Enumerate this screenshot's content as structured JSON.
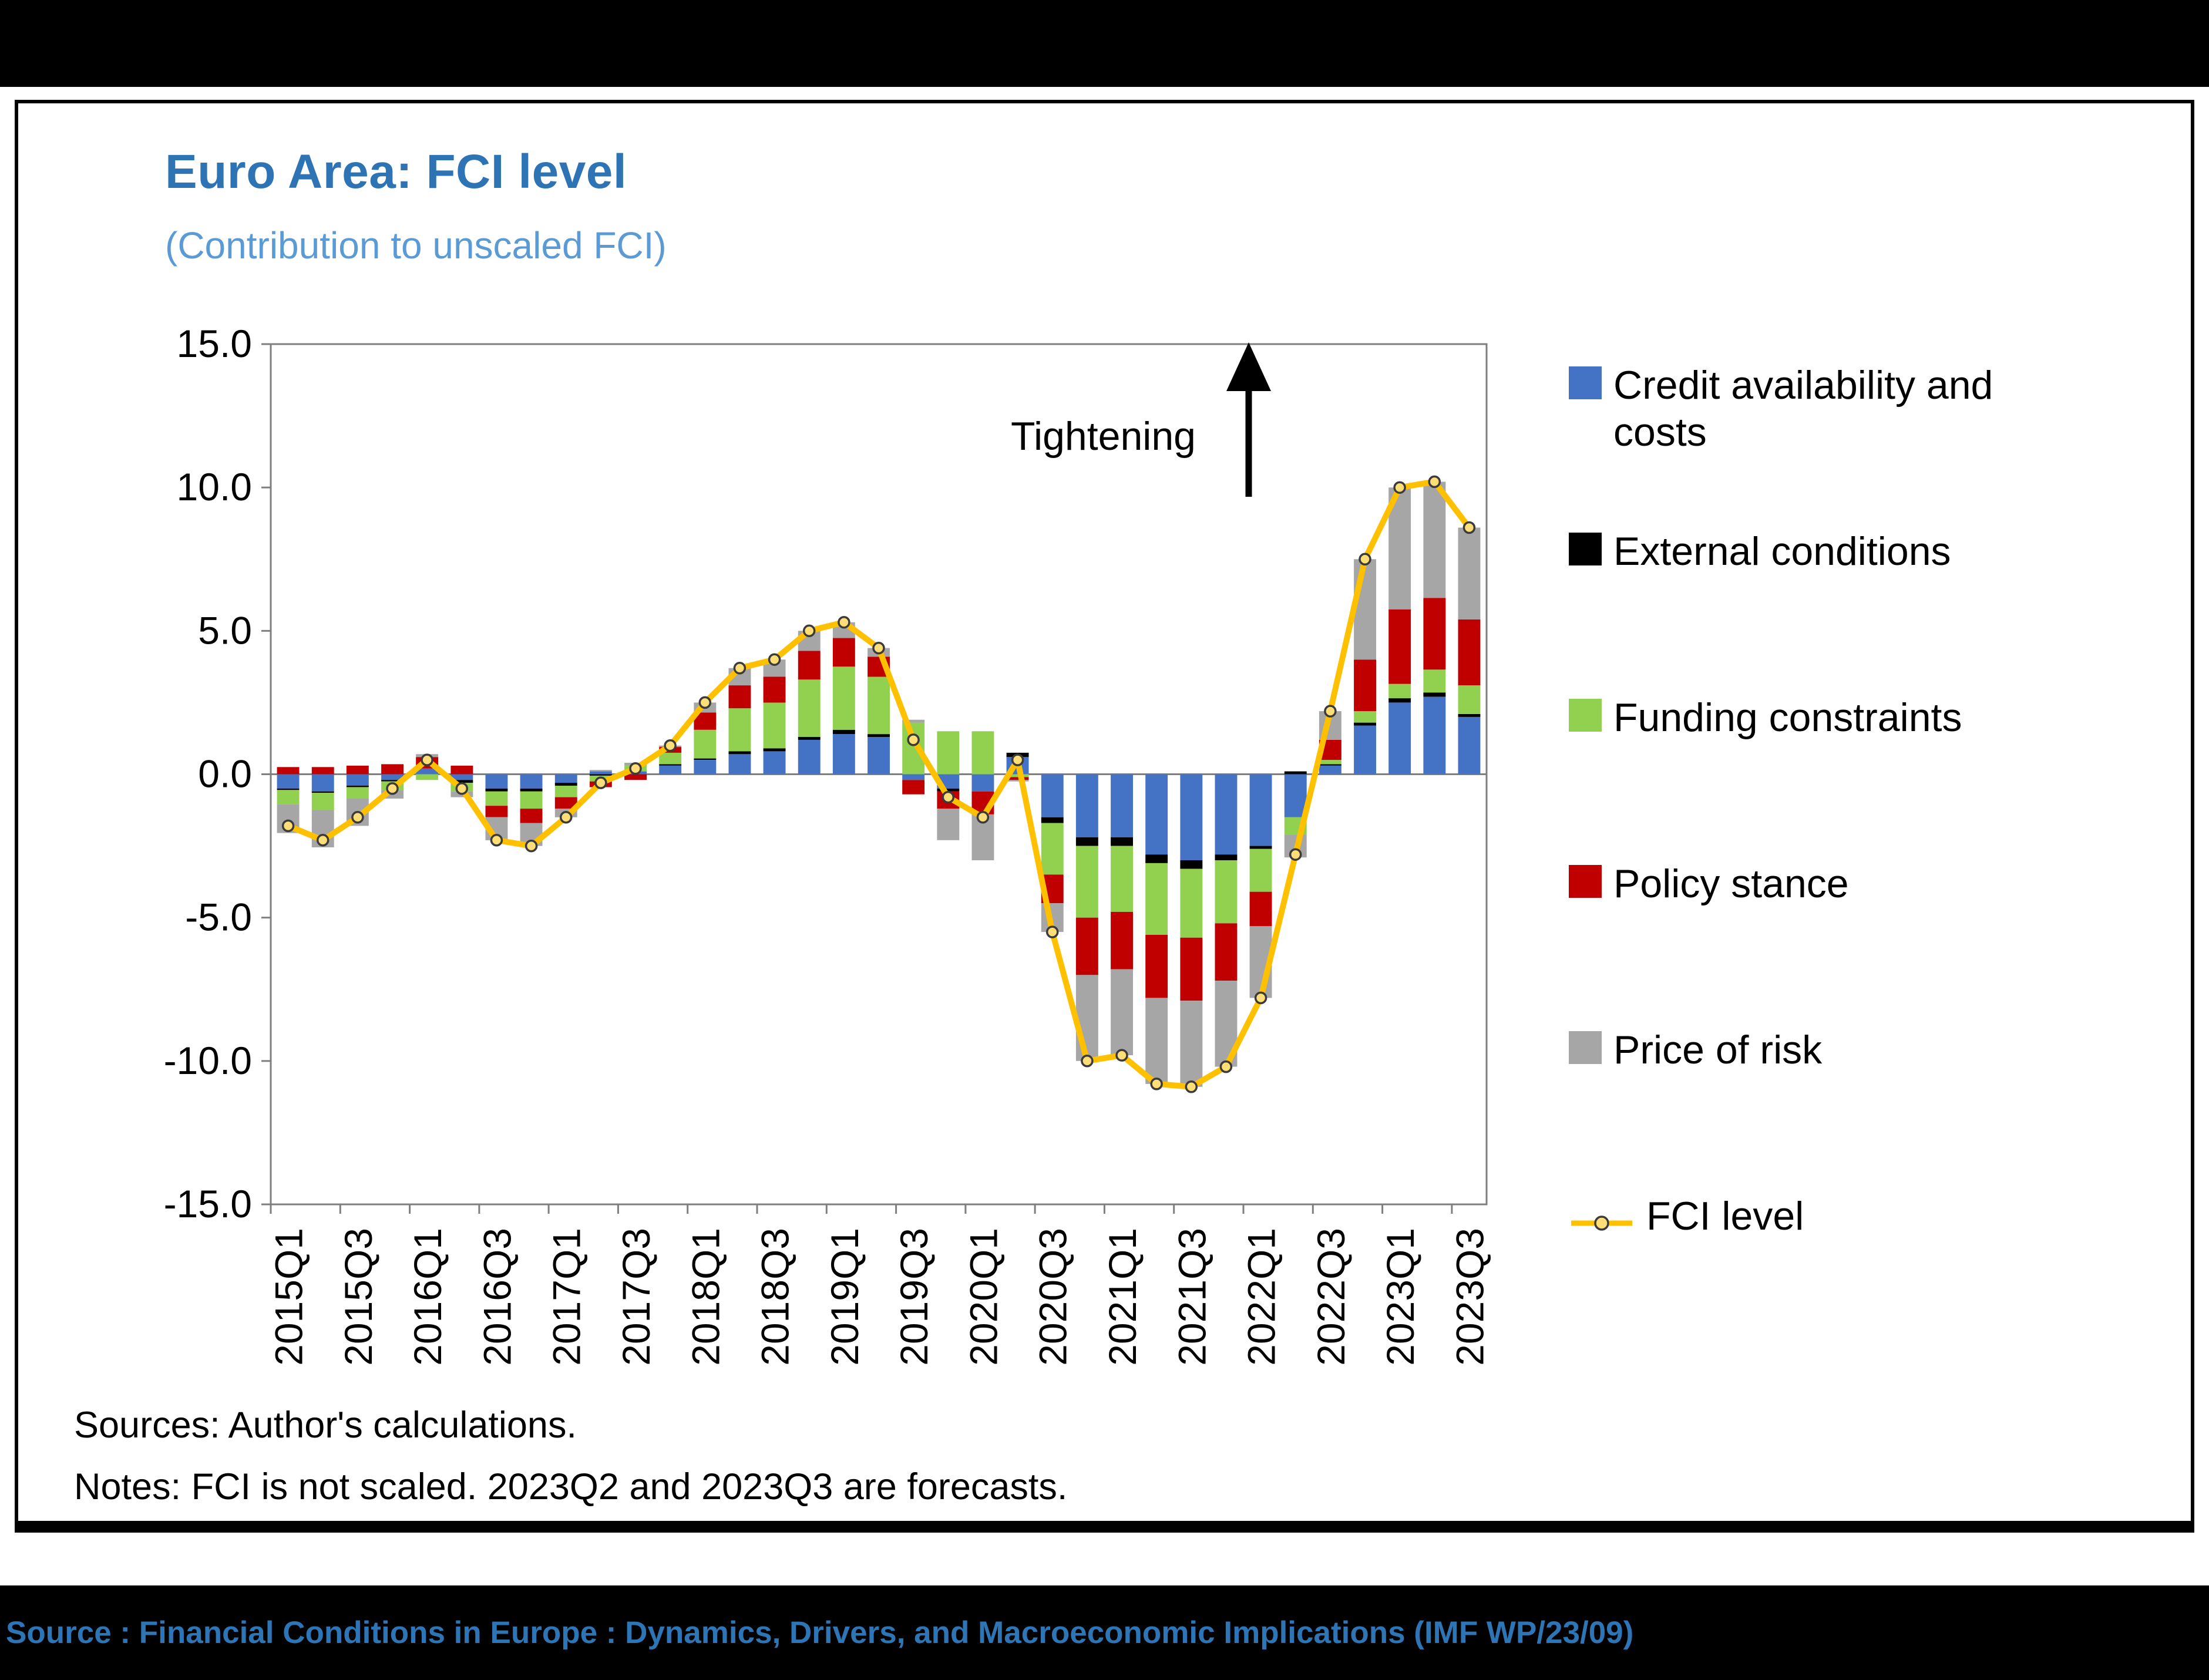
{
  "card": {
    "title": "Euro Area: FCI level",
    "subtitle": "(Contribution to unscaled FCI)",
    "sources": "Sources: Author's calculations.",
    "notes": "Notes: FCI is not scaled. 2023Q2 and 2023Q3 are forecasts."
  },
  "footer": {
    "source_line": "Source : Financial Conditions in Europe :  Dynamics, Drivers, and Macroeconomic Implications (IMF WP/23/09)"
  },
  "colors": {
    "title_blue": "#2E74B5",
    "subtitle_blue": "#5B9BD5",
    "footer_text_blue": "#2E75B6",
    "axis_gray": "#7F7F7F"
  },
  "chart_data": {
    "type": "bar",
    "stacked": true,
    "title": "Euro Area: FCI level",
    "subtitle": "(Contribution to unscaled FCI)",
    "xlabel": "",
    "ylabel": "",
    "ylim": [
      -15,
      15
    ],
    "yticks": [
      15,
      10,
      5,
      0,
      -5,
      -10,
      -15
    ],
    "grid": false,
    "legend_position": "right",
    "annotation": {
      "text": "Tightening",
      "arrow": "up"
    },
    "categories": [
      "2015Q1",
      "2015Q2",
      "2015Q3",
      "2015Q4",
      "2016Q1",
      "2016Q2",
      "2016Q3",
      "2016Q4",
      "2017Q1",
      "2017Q2",
      "2017Q3",
      "2017Q4",
      "2018Q1",
      "2018Q2",
      "2018Q3",
      "2018Q4",
      "2019Q1",
      "2019Q2",
      "2019Q3",
      "2019Q4",
      "2020Q1",
      "2020Q2",
      "2020Q3",
      "2020Q4",
      "2021Q1",
      "2021Q2",
      "2021Q3",
      "2021Q4",
      "2022Q1",
      "2022Q2",
      "2022Q3",
      "2022Q4",
      "2023Q1",
      "2023Q2",
      "2023Q3"
    ],
    "xtick_label_every": 2,
    "series": [
      {
        "name": "Credit availability and costs",
        "color": "#4472C4",
        "values": [
          -0.5,
          -0.6,
          -0.4,
          -0.2,
          0.2,
          -0.2,
          -0.5,
          -0.5,
          -0.3,
          0.1,
          0.1,
          0.3,
          0.5,
          0.7,
          0.8,
          1.2,
          1.4,
          1.3,
          -0.2,
          -0.5,
          -0.6,
          0.6,
          -1.5,
          -2.2,
          -2.2,
          -2.8,
          -3.0,
          -2.8,
          -2.5,
          -1.5,
          0.3,
          1.7,
          2.5,
          2.7,
          2.0
        ]
      },
      {
        "name": "External conditions",
        "color": "#000000",
        "values": [
          -0.05,
          -0.05,
          -0.05,
          -0.05,
          0.0,
          -0.1,
          -0.1,
          -0.1,
          -0.1,
          -0.05,
          0.0,
          0.05,
          0.05,
          0.1,
          0.1,
          0.1,
          0.15,
          0.1,
          0.0,
          -0.1,
          0.0,
          0.15,
          -0.2,
          -0.3,
          -0.3,
          -0.3,
          -0.3,
          -0.2,
          -0.1,
          0.1,
          0.05,
          0.1,
          0.15,
          0.15,
          0.1
        ]
      },
      {
        "name": "Funding constraints",
        "color": "#92D050",
        "values": [
          -0.5,
          -0.6,
          -0.4,
          -0.3,
          -0.2,
          -0.3,
          -0.5,
          -0.6,
          -0.4,
          -0.2,
          0.2,
          0.4,
          1.0,
          1.5,
          1.6,
          2.0,
          2.2,
          2.0,
          1.8,
          1.5,
          1.5,
          -0.1,
          -1.8,
          -2.5,
          -2.3,
          -2.5,
          -2.4,
          -2.2,
          -1.5,
          -0.6,
          0.15,
          0.4,
          0.5,
          0.8,
          1.0
        ]
      },
      {
        "name": "Policy stance",
        "color": "#C00000",
        "values": [
          0.25,
          0.25,
          0.3,
          0.35,
          0.4,
          0.3,
          -0.4,
          -0.5,
          -0.4,
          -0.2,
          -0.2,
          0.2,
          0.6,
          0.8,
          0.9,
          1.0,
          1.0,
          0.7,
          -0.5,
          -0.6,
          -0.8,
          -0.1,
          -1.0,
          -2.0,
          -2.0,
          -2.2,
          -2.2,
          -2.0,
          -1.2,
          0.0,
          0.7,
          1.8,
          2.6,
          2.5,
          2.3
        ]
      },
      {
        "name": "Price of risk",
        "color": "#A6A6A6",
        "values": [
          -1.0,
          -1.3,
          -0.95,
          -0.3,
          0.1,
          -0.2,
          -0.8,
          -0.8,
          -0.3,
          0.05,
          0.1,
          0.05,
          0.35,
          0.6,
          0.6,
          0.7,
          0.55,
          0.3,
          0.1,
          -1.1,
          -1.6,
          -0.05,
          -1.0,
          -3.0,
          -3.0,
          -3.0,
          -3.0,
          -3.0,
          -2.5,
          -0.8,
          1.0,
          3.5,
          4.25,
          4.05,
          3.2
        ]
      }
    ],
    "line": {
      "name": "FCI level",
      "color": "#FFC000",
      "marker": "circle",
      "values": [
        -1.8,
        -2.3,
        -1.5,
        -0.5,
        0.5,
        -0.5,
        -2.3,
        -2.5,
        -1.5,
        -0.3,
        0.2,
        1.0,
        2.5,
        3.7,
        4.0,
        5.0,
        5.3,
        4.4,
        1.2,
        -0.8,
        -1.5,
        0.5,
        -5.5,
        -10.0,
        -9.8,
        -10.8,
        -10.9,
        -10.2,
        -7.8,
        -2.8,
        2.2,
        7.5,
        10.0,
        10.2,
        8.6
      ]
    }
  }
}
